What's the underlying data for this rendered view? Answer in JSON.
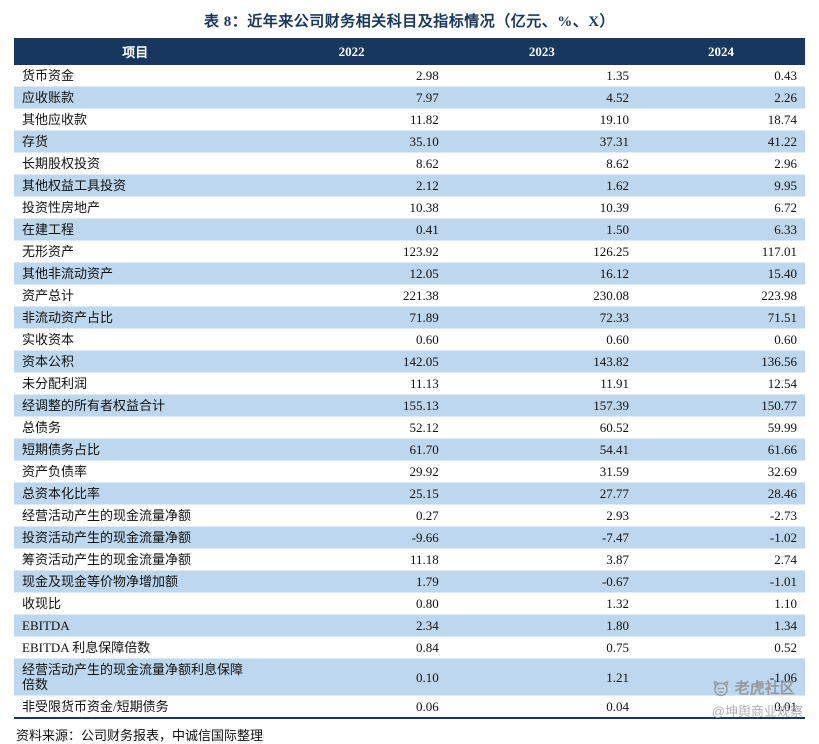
{
  "title": "表 8：近年来公司财务相关科目及指标情况（亿元、%、X）",
  "table": {
    "headers": [
      "项目",
      "2022",
      "2023",
      "2024"
    ],
    "rows": [
      {
        "item": "货币资金",
        "values": [
          "2.98",
          "1.35",
          "0.43"
        ]
      },
      {
        "item": "应收账款",
        "values": [
          "7.97",
          "4.52",
          "2.26"
        ]
      },
      {
        "item": "其他应收款",
        "values": [
          "11.82",
          "19.10",
          "18.74"
        ]
      },
      {
        "item": "存货",
        "values": [
          "35.10",
          "37.31",
          "41.22"
        ]
      },
      {
        "item": "长期股权投资",
        "values": [
          "8.62",
          "8.62",
          "2.96"
        ]
      },
      {
        "item": "其他权益工具投资",
        "values": [
          "2.12",
          "1.62",
          "9.95"
        ]
      },
      {
        "item": "投资性房地产",
        "values": [
          "10.38",
          "10.39",
          "6.72"
        ]
      },
      {
        "item": "在建工程",
        "values": [
          "0.41",
          "1.50",
          "6.33"
        ]
      },
      {
        "item": "无形资产",
        "values": [
          "123.92",
          "126.25",
          "117.01"
        ]
      },
      {
        "item": "其他非流动资产",
        "values": [
          "12.05",
          "16.12",
          "15.40"
        ]
      },
      {
        "item": "资产总计",
        "values": [
          "221.38",
          "230.08",
          "223.98"
        ]
      },
      {
        "item": "非流动资产占比",
        "values": [
          "71.89",
          "72.33",
          "71.51"
        ]
      },
      {
        "item": "实收资本",
        "values": [
          "0.60",
          "0.60",
          "0.60"
        ]
      },
      {
        "item": "资本公积",
        "values": [
          "142.05",
          "143.82",
          "136.56"
        ]
      },
      {
        "item": "未分配利润",
        "values": [
          "11.13",
          "11.91",
          "12.54"
        ]
      },
      {
        "item": "经调整的所有者权益合计",
        "values": [
          "155.13",
          "157.39",
          "150.77"
        ]
      },
      {
        "item": "总债务",
        "values": [
          "52.12",
          "60.52",
          "59.99"
        ]
      },
      {
        "item": "短期债务占比",
        "values": [
          "61.70",
          "54.41",
          "61.66"
        ]
      },
      {
        "item": "资产负债率",
        "values": [
          "29.92",
          "31.59",
          "32.69"
        ]
      },
      {
        "item": "总资本化比率",
        "values": [
          "25.15",
          "27.77",
          "28.46"
        ]
      },
      {
        "item": "经营活动产生的现金流量净额",
        "values": [
          "0.27",
          "2.93",
          "-2.73"
        ]
      },
      {
        "item": "投资活动产生的现金流量净额",
        "values": [
          "-9.66",
          "-7.47",
          "-1.02"
        ]
      },
      {
        "item": "筹资活动产生的现金流量净额",
        "values": [
          "11.18",
          "3.87",
          "2.74"
        ]
      },
      {
        "item": "现金及现金等价物净增加额",
        "values": [
          "1.79",
          "-0.67",
          "-1.01"
        ]
      },
      {
        "item": "收现比",
        "values": [
          "0.80",
          "1.32",
          "1.10"
        ]
      },
      {
        "item": "EBITDA",
        "values": [
          "2.34",
          "1.80",
          "1.34"
        ]
      },
      {
        "item": "EBITDA 利息保障倍数",
        "values": [
          "0.84",
          "0.75",
          "0.52"
        ]
      },
      {
        "item": "经营活动产生的现金流量净额利息保障倍数",
        "values": [
          "0.10",
          "1.21",
          "-1.06"
        ]
      },
      {
        "item": "非受限货币资金/短期债务",
        "values": [
          "0.06",
          "0.04",
          "0.01"
        ]
      }
    ]
  },
  "footer": {
    "source": "资料来源：公司财务报表，中诚信国际整理"
  },
  "watermark": {
    "brand": "老虎社区",
    "handle": "@坤舆商业观察"
  },
  "colors": {
    "header_bg": "#17375E",
    "stripe": "#BDD7EE",
    "title": "#17375E"
  }
}
